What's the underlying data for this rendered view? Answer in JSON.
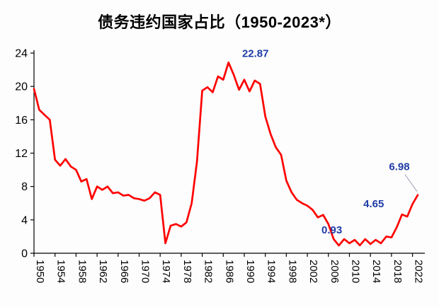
{
  "title": "债务违约国家占比（1950-2023*）",
  "colors": {
    "line": "#fe0000",
    "annotation": "#1f3ba6",
    "axis": "#000000",
    "background": "#fdfdfd"
  },
  "chart_data": {
    "type": "line",
    "title": "债务违约国家占比（1950-2023*）",
    "xlabel": "",
    "ylabel": "",
    "ylim": [
      0,
      24
    ],
    "yticks": [
      0,
      4,
      8,
      12,
      16,
      20,
      24
    ],
    "xticks": [
      1950,
      1954,
      1958,
      1962,
      1966,
      1970,
      1974,
      1978,
      1982,
      1986,
      1990,
      1994,
      1998,
      2002,
      2006,
      2010,
      2014,
      2018,
      2022
    ],
    "grid": false,
    "legend": false,
    "x": [
      1950,
      1951,
      1952,
      1953,
      1954,
      1955,
      1956,
      1957,
      1958,
      1959,
      1960,
      1961,
      1962,
      1963,
      1964,
      1965,
      1966,
      1967,
      1968,
      1969,
      1970,
      1971,
      1972,
      1973,
      1974,
      1975,
      1976,
      1977,
      1978,
      1979,
      1980,
      1981,
      1982,
      1983,
      1984,
      1985,
      1986,
      1987,
      1988,
      1989,
      1990,
      1991,
      1992,
      1993,
      1994,
      1995,
      1996,
      1997,
      1998,
      1999,
      2000,
      2001,
      2002,
      2003,
      2004,
      2005,
      2006,
      2007,
      2008,
      2009,
      2010,
      2011,
      2012,
      2013,
      2014,
      2015,
      2016,
      2017,
      2018,
      2019,
      2020,
      2021,
      2022,
      2023
    ],
    "values": [
      19.7,
      17.2,
      16.6,
      16.0,
      11.2,
      10.5,
      11.3,
      10.4,
      10.0,
      8.6,
      8.9,
      6.5,
      8.0,
      7.6,
      8.0,
      7.2,
      7.3,
      6.9,
      7.0,
      6.6,
      6.5,
      6.3,
      6.6,
      7.3,
      7.0,
      1.2,
      3.3,
      3.5,
      3.2,
      3.7,
      6.0,
      11.0,
      19.5,
      19.9,
      19.3,
      21.2,
      20.8,
      22.87,
      21.4,
      19.6,
      20.8,
      19.4,
      20.7,
      20.3,
      16.4,
      14.3,
      12.7,
      11.8,
      8.7,
      7.3,
      6.4,
      6.0,
      5.7,
      5.2,
      4.3,
      4.6,
      3.5,
      1.7,
      0.93,
      1.7,
      1.2,
      1.6,
      0.95,
      1.7,
      1.1,
      1.6,
      1.2,
      2.0,
      1.9,
      3.1,
      4.65,
      4.4,
      5.9,
      6.98
    ],
    "annotations": [
      {
        "label": "22.87",
        "x": 1987,
        "y": 22.87
      },
      {
        "label": "0.93",
        "x": 2008,
        "y": 0.93
      },
      {
        "label": "4.65",
        "x": 2020,
        "y": 4.65
      },
      {
        "label": "6.98",
        "x": 2023,
        "y": 6.98
      }
    ]
  }
}
